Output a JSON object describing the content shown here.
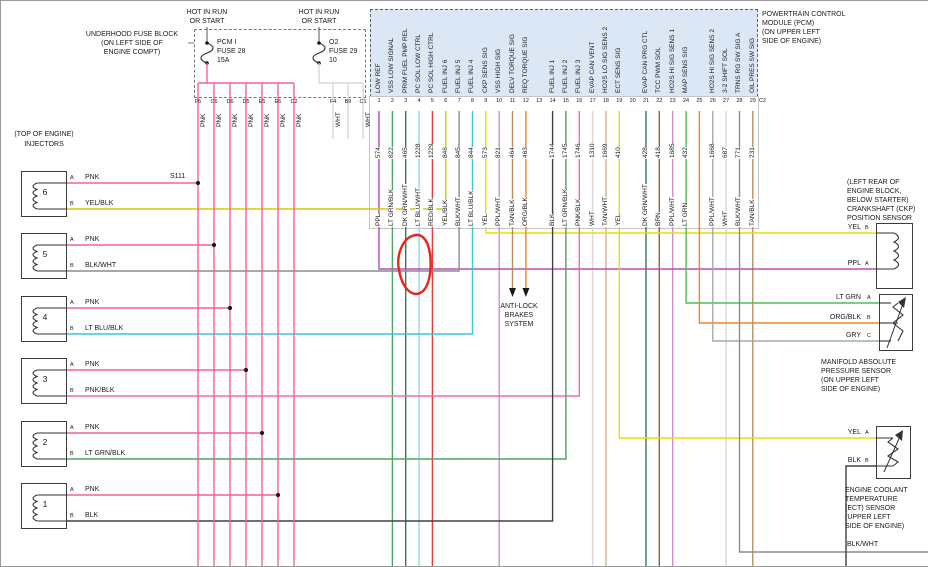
{
  "palette": {
    "PNK": "#f2619f",
    "PNK/BLK": "#ef6fa7",
    "PPL": "#bf49bf",
    "PPL/WHT": "#cf8fcf",
    "YEL": "#e8df00",
    "YEL/BLK": "#d4ca00",
    "BLK": "#404040",
    "BLK/WHT": "#8c8c8c",
    "WHT": "#d8d8d8",
    "GRY": "#a8a8a8",
    "LT BLU/BLK": "#35c8d8",
    "LT BLU/WHT": "#8fd8ec",
    "RED/BLK": "#e03a3a",
    "DK GRN/WHT": "#2e7d4f",
    "LT GRN/BLK": "#4aa564",
    "LT GRN": "#4dbd5e",
    "TAN/BLK": "#b39064",
    "TAN/WHT": "#d2b48c",
    "ORG/BLK": "#f08428",
    "BRN": "#96642e",
    "annotation_red": "#e8241c",
    "pcm_fill": "#dbe7f5"
  },
  "fuse_block": {
    "label_lines": [
      "UNDERHOOD FUSE BLOCK",
      "(ON LEFT SIDE OF",
      "ENGINE COMPT)"
    ],
    "hot_labels": [
      [
        "HOT IN RUN",
        "OR START"
      ],
      [
        "HOT IN RUN",
        "OR START"
      ]
    ],
    "fuses": [
      {
        "name": "PCM I",
        "id": "FUSE 28",
        "rating": "15A"
      },
      {
        "name": "O2",
        "id": "FUSE 29",
        "rating": "10"
      }
    ],
    "pnk_terminals": [
      "F5",
      "C6",
      "D6",
      "D5",
      "E5",
      "E6",
      "C2"
    ],
    "o2_terminals": [
      {
        "letter": "F4",
        "wire": "WHT"
      },
      {
        "letter": "B9",
        "wire": ""
      },
      {
        "letter": "C1",
        "wire": "WHT"
      }
    ],
    "feed_wire": "PNK"
  },
  "pcm": {
    "title_lines": [
      "POWERTRAIN CONTROL",
      "MODULE (PCM)",
      "(ON UPPER LEFT",
      "SIDE OF ENGINE)"
    ],
    "connector_id": "C2",
    "pins": [
      {
        "n": "1",
        "label": "LOW REF",
        "wire": "574",
        "color": "PPL"
      },
      {
        "n": "2",
        "label": "VSS LOW SIGNAL",
        "wire": "822",
        "color": "LT GRN/BLK"
      },
      {
        "n": "3",
        "label": "PRIM FUEL PMP REL",
        "wire": "465",
        "color": "DK GRN/WHT"
      },
      {
        "n": "4",
        "label": "PC SOL LOW CTRL",
        "wire": "1228",
        "color": "LT BLU/WHT"
      },
      {
        "n": "5",
        "label": "PC SOL HIGH CTRL",
        "wire": "1229",
        "color": "RED/BLK"
      },
      {
        "n": "6",
        "label": "FUEL INJ 6",
        "wire": "846",
        "color": "YEL/BLK"
      },
      {
        "n": "7",
        "label": "FUEL INJ 5",
        "wire": "845",
        "color": "BLK/WHT"
      },
      {
        "n": "8",
        "label": "FUEL INJ 4",
        "wire": "844",
        "color": "LT BLU/BLK"
      },
      {
        "n": "9",
        "label": "CKP SENS SIG",
        "wire": "573",
        "color": "YEL"
      },
      {
        "n": "10",
        "label": "VSS HIGH SIG",
        "wire": "821",
        "color": "PPL/WHT"
      },
      {
        "n": "11",
        "label": "DELV TORQUE SIG",
        "wire": "464",
        "color": "TAN/BLK"
      },
      {
        "n": "12",
        "label": "REQ TORQUE SIG",
        "wire": "463",
        "color": "ORG/BLK"
      },
      {
        "n": "13",
        "label": "",
        "wire": "",
        "color": ""
      },
      {
        "n": "14",
        "label": "FUEL INJ 1",
        "wire": "1744",
        "color": "BLK"
      },
      {
        "n": "15",
        "label": "FUEL INJ 2",
        "wire": "1745",
        "color": "LT GRN/BLK"
      },
      {
        "n": "16",
        "label": "FUEL INJ 3",
        "wire": "1746",
        "color": "PNK/BLK"
      },
      {
        "n": "17",
        "label": "EVAP CAN VENT",
        "wire": "1310",
        "color": "WHT"
      },
      {
        "n": "18",
        "label": "HO2S LO SIG SENS 2",
        "wire": "1669",
        "color": "TAN/WHT"
      },
      {
        "n": "19",
        "label": "ECT SENS SIG",
        "wire": "410",
        "color": "YEL"
      },
      {
        "n": "20",
        "label": "",
        "wire": "",
        "color": ""
      },
      {
        "n": "21",
        "label": "EVAP CAN PRG CTL",
        "wire": "428",
        "color": "DK GRN/WHT"
      },
      {
        "n": "22",
        "label": "TCC PWM SOL",
        "wire": "418",
        "color": "BRN"
      },
      {
        "n": "23",
        "label": "HO2S HI SIG SENS 1",
        "wire": "1685",
        "color": "PPL/WHT"
      },
      {
        "n": "24",
        "label": "MAP SENS SIG",
        "wire": "432",
        "color": "LT GRN"
      },
      {
        "n": "25",
        "label": "",
        "wire": "",
        "color": ""
      },
      {
        "n": "26",
        "label": "HO2S HI SIG SENS 2",
        "wire": "1668",
        "color": "PPL/WHT"
      },
      {
        "n": "27",
        "label": "3-2 SHIFT SOL",
        "wire": "687",
        "color": "WHT"
      },
      {
        "n": "28",
        "label": "TRNS RG SW SIG A",
        "wire": "771",
        "color": "BLK/WHT"
      },
      {
        "n": "29",
        "label": "OIL PRES SW SIG",
        "wire": "231",
        "color": "TAN/BLK"
      }
    ]
  },
  "injectors": {
    "header_lines": [
      "(TOP OF ENGINE)",
      "INJECTORS"
    ],
    "splice_id": "S111",
    "items": [
      {
        "num": "6",
        "pin_a_wire": "PNK",
        "pin_b_wire": "YEL/BLK"
      },
      {
        "num": "5",
        "pin_a_wire": "PNK",
        "pin_b_wire": "BLK/WHT"
      },
      {
        "num": "4",
        "pin_a_wire": "PNK",
        "pin_b_wire": "LT BLU/BLK"
      },
      {
        "num": "3",
        "pin_a_wire": "PNK",
        "pin_b_wire": "PNK/BLK"
      },
      {
        "num": "2",
        "pin_a_wire": "PNK",
        "pin_b_wire": "LT GRN/BLK"
      },
      {
        "num": "1",
        "pin_a_wire": "PNK",
        "pin_b_wire": "BLK"
      }
    ]
  },
  "sensors": {
    "ckp": {
      "label_lines": [
        "(LEFT REAR OF",
        "ENGINE BLOCK,",
        "BELOW STARTER)",
        "CRANKSHAFT (CKP)",
        "POSITION SENSOR"
      ],
      "pins": [
        {
          "letter": "B",
          "wire": "YEL"
        },
        {
          "letter": "A",
          "wire": "PPL"
        }
      ]
    },
    "map": {
      "label_lines": [
        "MANIFOLD ABSOLUTE",
        "PRESSURE SENSOR",
        "(ON UPPER LEFT",
        "SIDE OF ENGINE)"
      ],
      "pins": [
        {
          "letter": "A",
          "wire": "LT GRN"
        },
        {
          "letter": "B",
          "wire": "ORG/BLK"
        },
        {
          "letter": "C",
          "wire": "GRY"
        }
      ]
    },
    "ect": {
      "label_lines": [
        "ENGINE COOLANT",
        "TEMPERATURE",
        "(ECT) SENSOR",
        "(UPPER LEFT",
        "SIDE OF ENGINE)"
      ],
      "pins": [
        {
          "letter": "A",
          "wire": "YEL"
        },
        {
          "letter": "B",
          "wire": "BLK"
        }
      ]
    }
  },
  "abs_note": {
    "lines": [
      "ANTI-LOCK",
      "BRAKES",
      "SYSTEM"
    ]
  },
  "ground_wire_label": "BLK/WHT"
}
